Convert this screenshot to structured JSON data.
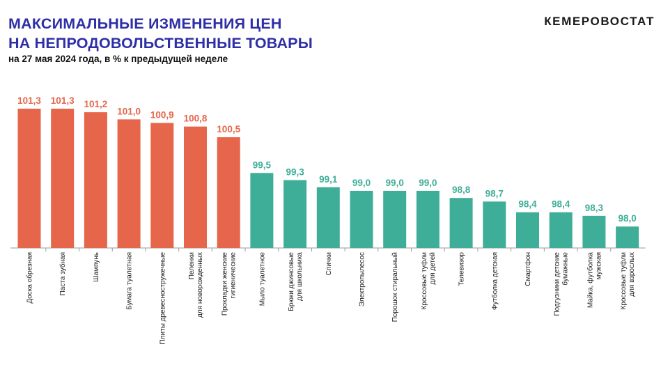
{
  "header": {
    "title_line1": "МАКСИМАЛЬНЫЕ ИЗМЕНЕНИЯ ЦЕН",
    "title_line2": "НА НЕПРОДОВОЛЬСТВЕННЫЕ ТОВАРЫ",
    "subtitle": "на 27 мая 2024 года, в % к предыдущей неделе",
    "brand": "КЕМЕРОВОСТАТ"
  },
  "colors": {
    "increase": "#e5664a",
    "decrease": "#3fae98",
    "title": "#2e2fa6"
  },
  "chart_data": {
    "type": "bar",
    "title": "МАКСИМАЛЬНЫЕ ИЗМЕНЕНИЯ ЦЕН НА НЕПРОДОВОЛЬСТВЕННЫЕ ТОВАРЫ",
    "subtitle": "на 27 мая 2024 года, в % к предыдущей неделе",
    "categories": [
      [
        "Доска обрезная"
      ],
      [
        "Паста зубная"
      ],
      [
        "Шампунь"
      ],
      [
        "Бумага туалетная"
      ],
      [
        "Плиты древесностружечные"
      ],
      [
        "Пеленки",
        "для новорожденных"
      ],
      [
        "Прокладки женские",
        "гигиенические"
      ],
      [
        "Мыло туалетное"
      ],
      [
        "Брюки джинсовые",
        "для школьника"
      ],
      [
        "Спички"
      ],
      [
        "Электропылесос"
      ],
      [
        "Порошок стиральный"
      ],
      [
        "Кроссовые туфли",
        "для детей"
      ],
      [
        "Телевизор"
      ],
      [
        "Футболка детская"
      ],
      [
        "Смартфон"
      ],
      [
        "Подгузники детские",
        "бумажные"
      ],
      [
        "Майка, футболка",
        "мужская"
      ],
      [
        "Кроссовые туфли",
        "для взрослых"
      ]
    ],
    "values": [
      101.3,
      101.3,
      101.2,
      101.0,
      100.9,
      100.8,
      100.5,
      99.5,
      99.3,
      99.1,
      99.0,
      99.0,
      99.0,
      98.8,
      98.7,
      98.4,
      98.4,
      98.3,
      98.0
    ],
    "value_labels": [
      "101,3",
      "101,3",
      "101,2",
      "101,0",
      "100,9",
      "100,8",
      "100,5",
      "99,5",
      "99,3",
      "99,1",
      "99,0",
      "99,0",
      "99,0",
      "98,8",
      "98,7",
      "98,4",
      "98,4",
      "98,3",
      "98,0"
    ],
    "ylim": [
      97.4,
      101.3
    ],
    "grid": false,
    "xlabel": "",
    "ylabel": ""
  }
}
